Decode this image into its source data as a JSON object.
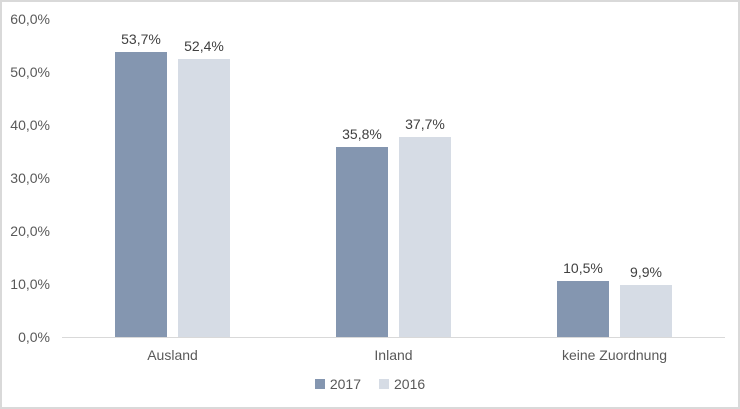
{
  "chart_data": {
    "type": "bar",
    "title": "",
    "xlabel": "",
    "ylabel": "",
    "categories": [
      "Ausland",
      "Inland",
      "keine Zuordnung"
    ],
    "series": [
      {
        "name": "2017",
        "color": "#8496B0",
        "values": [
          53.7,
          35.8,
          10.5
        ],
        "value_labels": [
          "53,7%",
          "35,8%",
          "10,5%"
        ]
      },
      {
        "name": "2016",
        "color": "#D6DCE5",
        "values": [
          52.4,
          37.7,
          9.9
        ],
        "value_labels": [
          "52,4%",
          "37,7%",
          "9,9%"
        ]
      }
    ],
    "ylim": [
      0,
      60
    ],
    "yticks": [
      0,
      10,
      20,
      30,
      40,
      50,
      60
    ],
    "ytick_labels": [
      "0,0%",
      "10,0%",
      "20,0%",
      "30,0%",
      "40,0%",
      "50,0%",
      "60,0%"
    ],
    "grid": false,
    "legend_position": "bottom",
    "legend_labels": [
      "2017",
      "2016"
    ]
  },
  "colors": {
    "series_2017": "#8496B0",
    "series_2016": "#D6DCE5",
    "axis_line": "#D9D9D9",
    "frame_border": "#D9D9D9",
    "tick_text": "#595959",
    "value_text": "#404040",
    "background": "#FFFFFF"
  }
}
